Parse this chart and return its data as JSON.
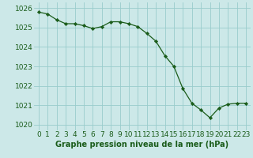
{
  "x": [
    0,
    1,
    2,
    3,
    4,
    5,
    6,
    7,
    8,
    9,
    10,
    11,
    12,
    13,
    14,
    15,
    16,
    17,
    18,
    19,
    20,
    21,
    22,
    23
  ],
  "y": [
    1025.8,
    1025.7,
    1025.4,
    1025.2,
    1025.2,
    1025.1,
    1024.95,
    1025.05,
    1025.3,
    1025.3,
    1025.2,
    1025.05,
    1024.7,
    1024.3,
    1023.55,
    1023.0,
    1021.85,
    1021.1,
    1020.75,
    1020.35,
    1020.85,
    1021.05,
    1021.1,
    1021.1
  ],
  "line_color": "#1a5c1a",
  "marker_color": "#1a5c1a",
  "bg_color": "#cce8e8",
  "grid_color": "#99cccc",
  "xlabel": "Graphe pression niveau de la mer (hPa)",
  "xlabel_color": "#1a5c1a",
  "ylim": [
    1019.7,
    1026.3
  ],
  "xlim": [
    -0.5,
    23.5
  ],
  "xtick_labels": [
    "0",
    "1",
    "2",
    "3",
    "4",
    "5",
    "6",
    "7",
    "8",
    "9",
    "10",
    "11",
    "12",
    "13",
    "14",
    "15",
    "16",
    "17",
    "18",
    "19",
    "20",
    "21",
    "22",
    "23"
  ],
  "axis_fontsize": 6.5,
  "label_fontsize": 7.0
}
